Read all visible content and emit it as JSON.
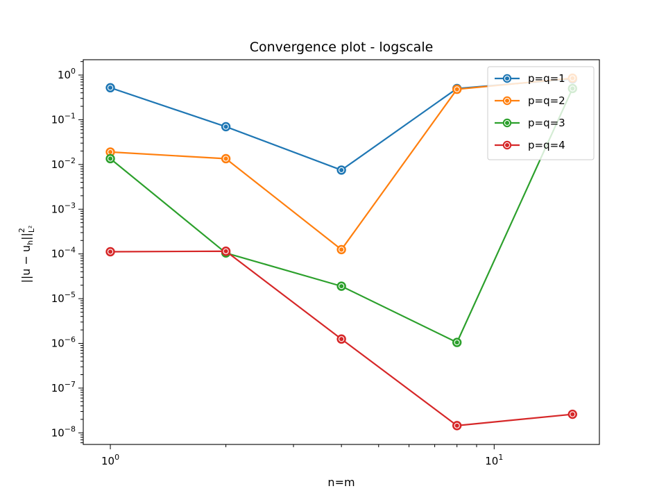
{
  "chart_data": {
    "type": "line",
    "title": "Convergence plot - logscale",
    "xlabel": "n=m",
    "ylabel_parts": {
      "base": "||u − u",
      "sub": "h",
      "close": "||",
      "sup": "2",
      "sub2": "L²"
    },
    "xscale": "log",
    "yscale": "log",
    "xlim": [
      0.85,
      18.8
    ],
    "ylim": [
      5.5e-09,
      2.2
    ],
    "x": [
      1,
      2,
      4,
      8,
      16
    ],
    "x_major_ticks": [
      {
        "value": 1,
        "base": "10",
        "exp": "0"
      },
      {
        "value": 10,
        "base": "10",
        "exp": "1"
      }
    ],
    "y_major_ticks": [
      {
        "value": 1,
        "base": "10",
        "exp": "0"
      },
      {
        "value": 0.1,
        "base": "10",
        "exp": "−1"
      },
      {
        "value": 0.01,
        "base": "10",
        "exp": "−2"
      },
      {
        "value": 0.001,
        "base": "10",
        "exp": "−3"
      },
      {
        "value": 0.0001,
        "base": "10",
        "exp": "−4"
      },
      {
        "value": 1e-05,
        "base": "10",
        "exp": "−5"
      },
      {
        "value": 1e-06,
        "base": "10",
        "exp": "−6"
      },
      {
        "value": 1e-07,
        "base": "10",
        "exp": "−7"
      },
      {
        "value": 1e-08,
        "base": "10",
        "exp": "−8"
      }
    ],
    "grid": false,
    "legend_position": "top-right",
    "series": [
      {
        "name": "p=q=1",
        "color": "#1f77b4",
        "values": [
          0.52,
          0.07,
          0.0075,
          0.5,
          0.82
        ]
      },
      {
        "name": "p=q=2",
        "color": "#ff7f0e",
        "values": [
          0.019,
          0.0135,
          0.000125,
          0.48,
          0.85
        ]
      },
      {
        "name": "p=q=3",
        "color": "#2ca02c",
        "values": [
          0.0135,
          0.000105,
          1.9e-05,
          1.05e-06,
          0.5
        ]
      },
      {
        "name": "p=q=4",
        "color": "#d62728",
        "values": [
          0.000112,
          0.000115,
          1.25e-06,
          1.45e-08,
          2.6e-08
        ]
      }
    ]
  }
}
